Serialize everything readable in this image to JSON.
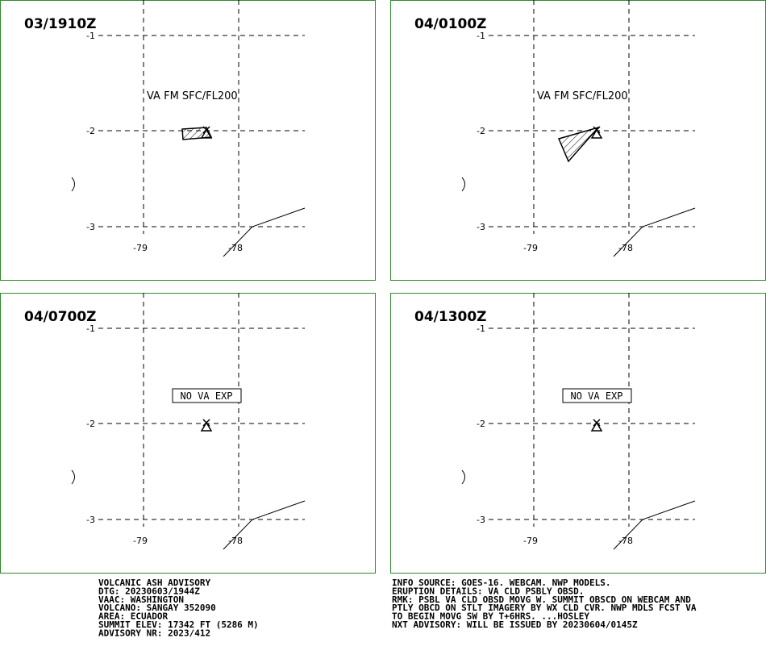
{
  "panels": [
    {
      "time": "03/1910Z",
      "label": "VA FM SFC/FL200",
      "boxed": false,
      "ash": [
        [
          226,
          160
        ],
        [
          256,
          158
        ],
        [
          262,
          170
        ],
        [
          227,
          173
        ]
      ]
    },
    {
      "time": "04/0100Z",
      "label": "VA FM SFC/FL200",
      "boxed": false,
      "ash": [
        [
          693,
          172
        ],
        [
          742,
          158
        ],
        [
          705,
          200
        ]
      ]
    },
    {
      "time": "04/0700Z",
      "label": "NO VA EXP",
      "boxed": true,
      "ash": null
    },
    {
      "time": "04/1300Z",
      "label": "NO VA EXP",
      "boxed": true,
      "ash": null
    }
  ],
  "lat_labels": [
    "-1",
    "-2",
    "-3"
  ],
  "lon_labels": [
    "-79",
    "-78"
  ],
  "footer_left": [
    "VOLCANIC ASH ADVISORY",
    "DTG: 20230603/1944Z",
    "VAAC: WASHINGTON",
    "VOLCANO: SANGAY 352090",
    "AREA: ECUADOR",
    "SUMMIT ELEV: 17342 FT (5286 M)",
    "ADVISORY NR: 2023/412"
  ],
  "footer_right": [
    "INFO SOURCE: GOES-16. WEBCAM. NWP MODELS.",
    "ERUPTION DETAILS: VA CLD PSBLY OBSD.",
    "RMK: PSBL VA CLD OBSD MOVG W. SUMMIT OBSCD ON WEBCAM AND",
    "PTLY OBCD ON STLT IMAGERY BY WX CLD CVR. NWP MDLS FCST VA",
    "TO BEGIN MOVG SW BY T+6HRS. ...HOSLEY",
    "NXT ADVISORY: WILL BE ISSUED BY 20230604/0145Z"
  ]
}
